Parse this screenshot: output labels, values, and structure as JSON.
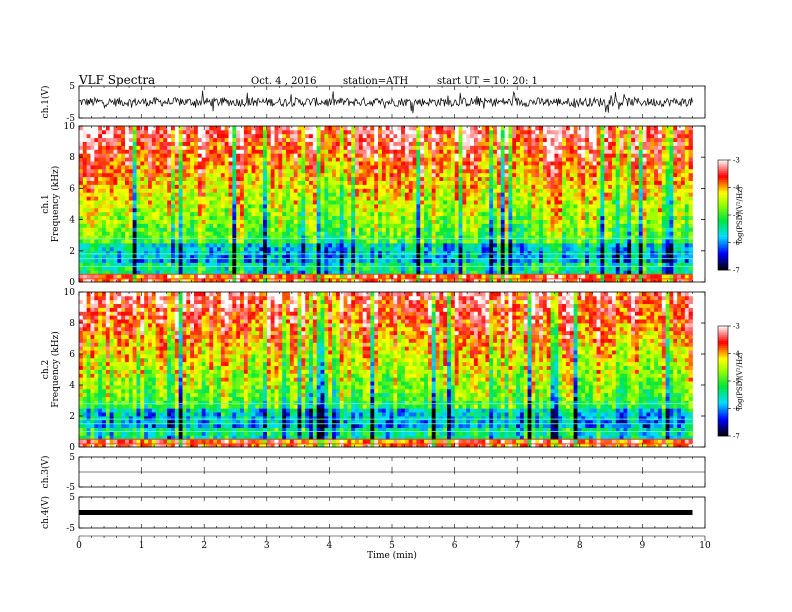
{
  "header": {
    "title": "VLF  Spectra",
    "date": "Oct. 4  , 2016",
    "station": "station=ATH",
    "start_ut_label": "start  UT  =",
    "start_ut_value": "10: 20: 1"
  },
  "chart_data": [
    {
      "type": "line",
      "panel": "ch1-waveform",
      "ylabel": "ch.1(V)",
      "ylim": [
        -5,
        5
      ],
      "yticks": [
        "5",
        "-5"
      ],
      "xlim": [
        0,
        10
      ],
      "data_extent_min": [
        0,
        9.8
      ],
      "series": [
        {
          "values_description": "noisy signal, mostly between about -2 and 2 V with spikes",
          "amplitude_V": 2
        }
      ],
      "color": "#000000"
    },
    {
      "type": "heatmap",
      "panel": "ch1-spectrogram",
      "ylabel": "ch.1\nFrequency  (kHz)",
      "ylabel_line1": "ch.1",
      "ylabel_line2": "Frequency  (kHz)",
      "ylim": [
        0,
        10
      ],
      "yticks": [
        "0",
        "2",
        "4",
        "6",
        "8",
        "10"
      ],
      "xlim": [
        0,
        10
      ],
      "data_extent_min": [
        0,
        9.8
      ],
      "colorbar": {
        "label": "log(PSD)(V²/Hz)",
        "range": [
          -7,
          -3
        ],
        "ticks": [
          "-3",
          "-4",
          "-5",
          "-6",
          "-7"
        ],
        "colors": [
          "#000000",
          "#0000ff",
          "#00ffff",
          "#00ff00",
          "#ffff00",
          "#ff0000",
          "#ffffff"
        ]
      }
    },
    {
      "type": "heatmap",
      "panel": "ch2-spectrogram",
      "ylabel": "ch.2\nFrequency  (kHz)",
      "ylabel_line1": "ch.2",
      "ylabel_line2": "Frequency  (kHz)",
      "ylim": [
        0,
        10
      ],
      "yticks": [
        "0",
        "2",
        "4",
        "6",
        "8",
        "10"
      ],
      "xlim": [
        0,
        10
      ],
      "data_extent_min": [
        0,
        9.8
      ],
      "colorbar": {
        "label": "log(PSD)(V²/Hz)",
        "range": [
          -7,
          -3
        ],
        "ticks": [
          "-3",
          "-4",
          "-5",
          "-6",
          "-7"
        ],
        "colors": [
          "#000000",
          "#0000ff",
          "#00ffff",
          "#00ff00",
          "#ffff00",
          "#ff0000",
          "#ffffff"
        ]
      }
    },
    {
      "type": "line",
      "panel": "ch3-waveform",
      "ylabel": "ch.3(V)",
      "ylim": [
        -5,
        5
      ],
      "yticks": [
        "5",
        "-5"
      ],
      "xlim": [
        0,
        10
      ],
      "series": [
        {
          "values_description": "flat near 0 V",
          "value": 0
        }
      ]
    },
    {
      "type": "line",
      "panel": "ch4-waveform",
      "ylabel": "ch.4(V)",
      "ylim": [
        -5,
        5
      ],
      "yticks": [
        "5",
        "-5"
      ],
      "xlim": [
        0,
        10
      ],
      "data_extent_min": [
        0,
        9.8
      ],
      "series": [
        {
          "values_description": "thick constant line",
          "value": 0
        }
      ]
    }
  ],
  "x_axis": {
    "label": "Time  (min)",
    "ticks": [
      "0",
      "1",
      "2",
      "3",
      "4",
      "5",
      "6",
      "7",
      "8",
      "9",
      "10"
    ]
  }
}
